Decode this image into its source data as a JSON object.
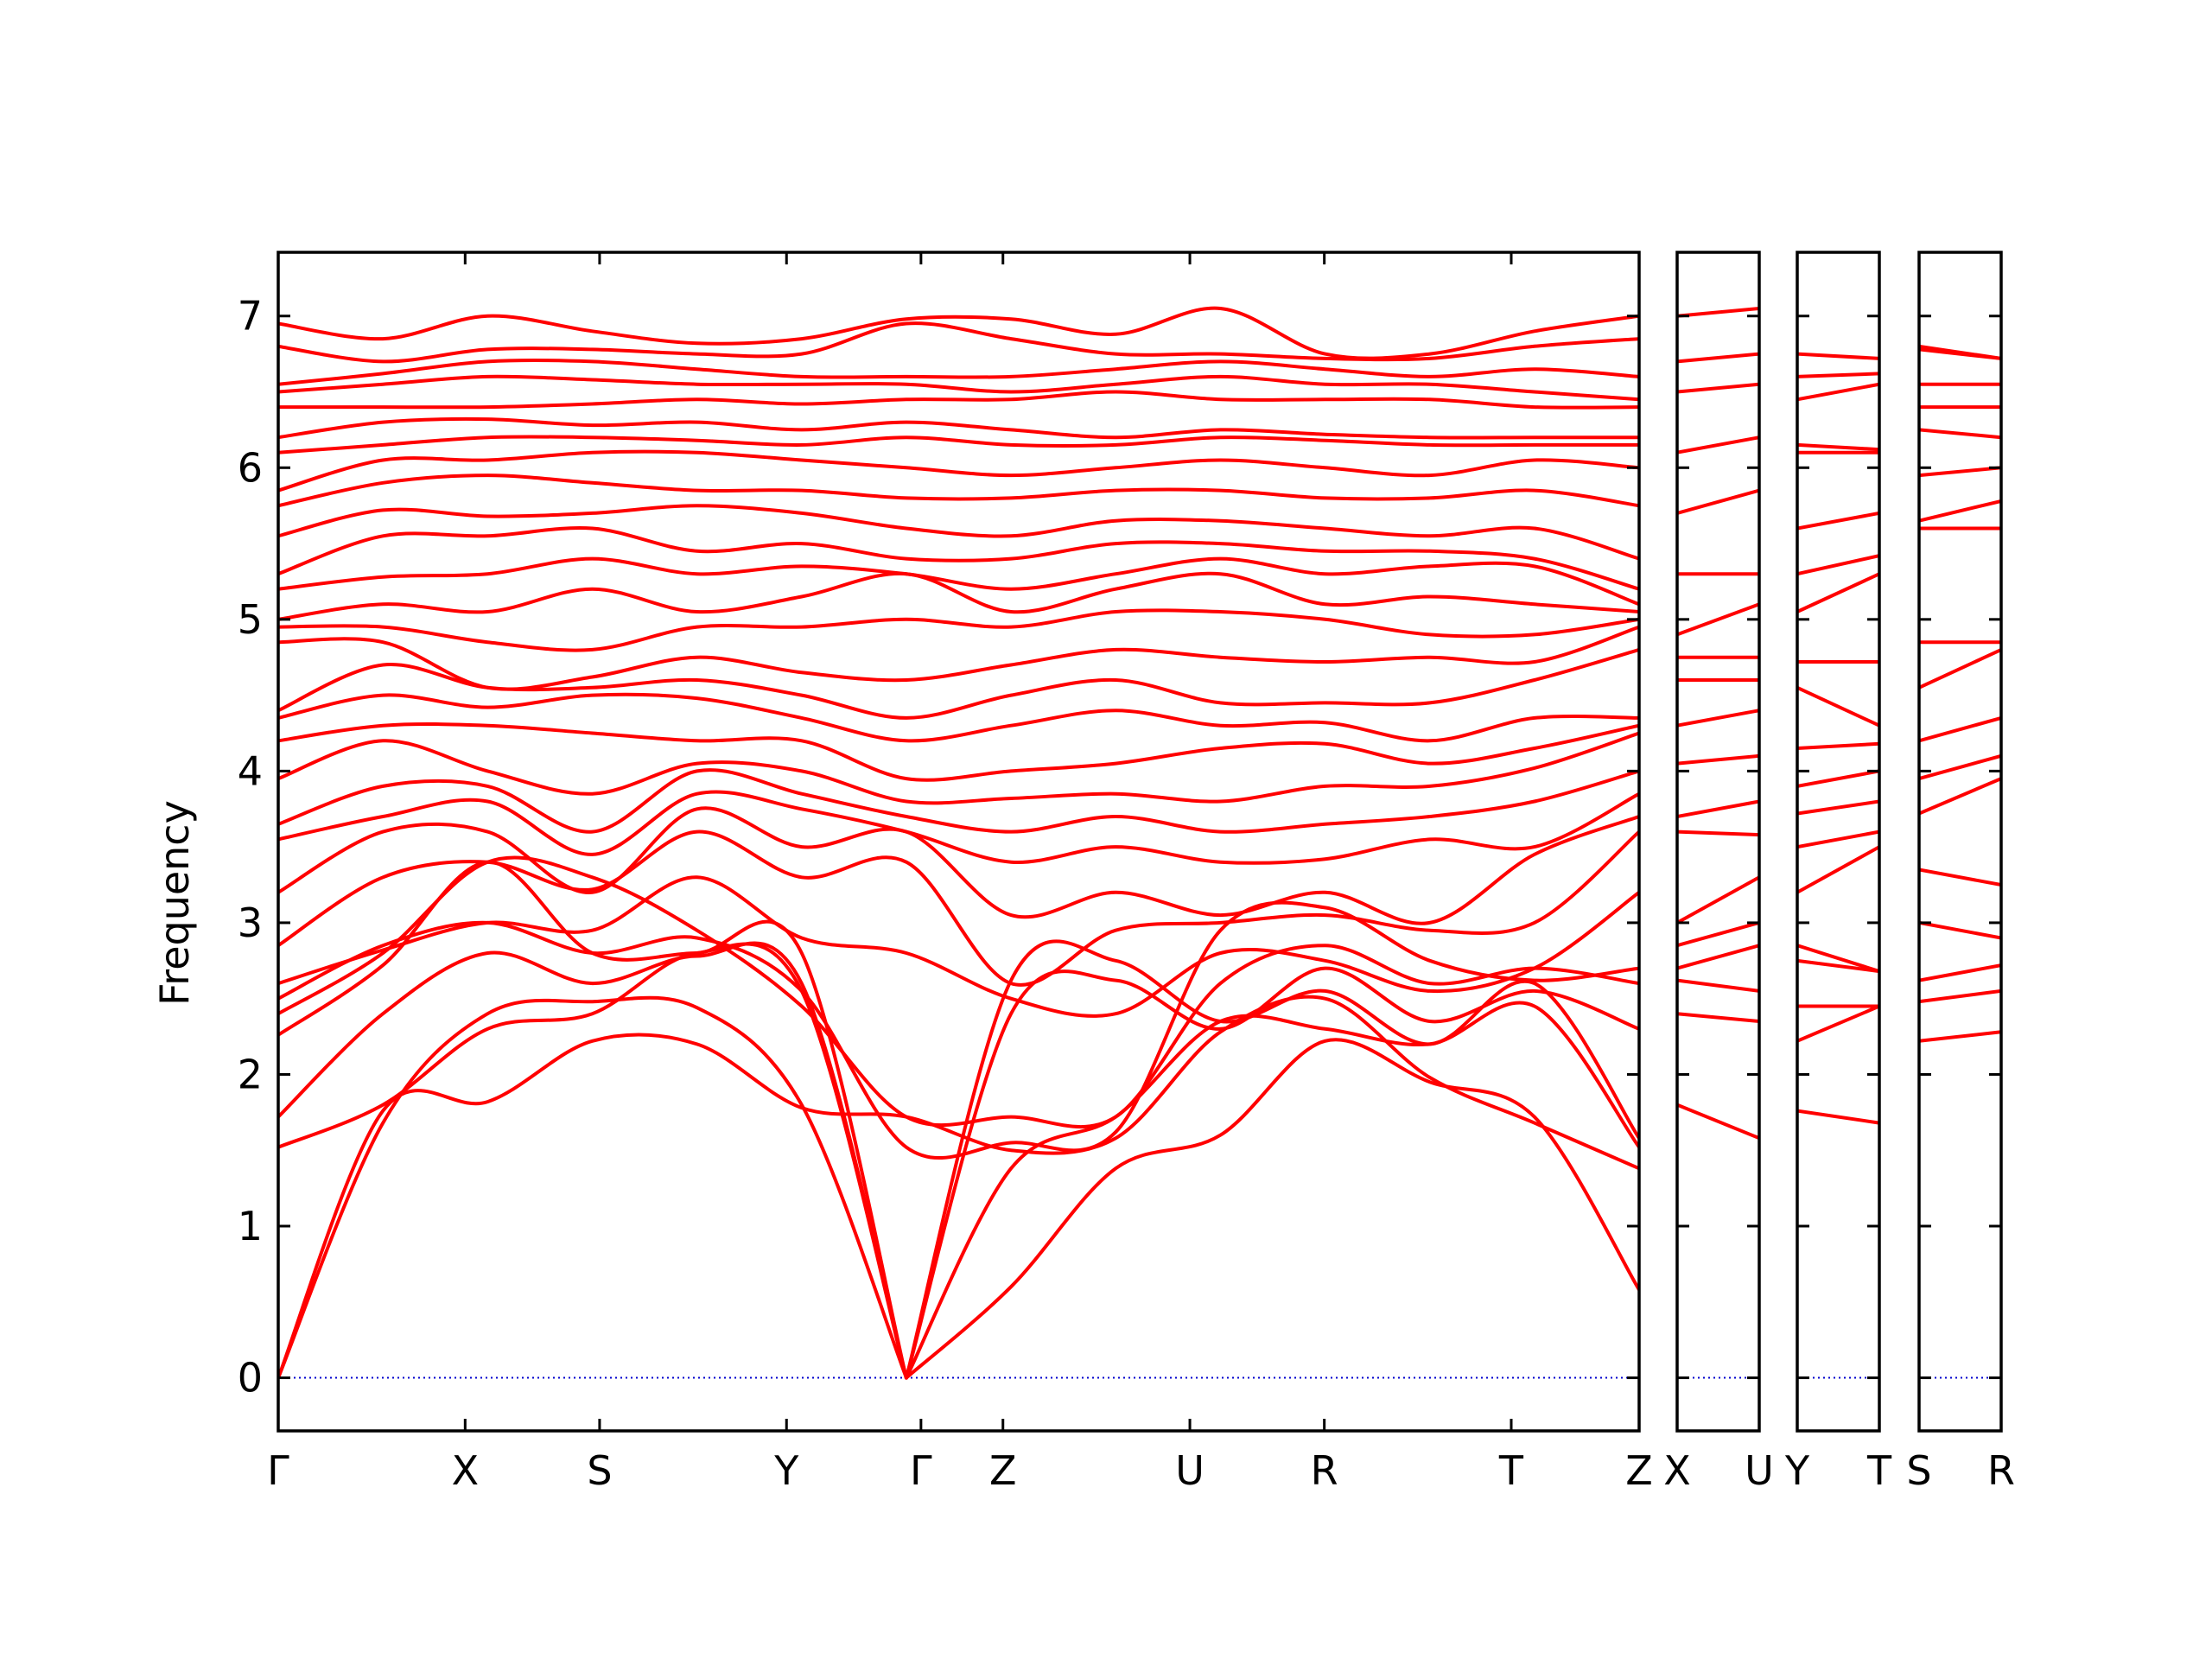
{
  "chart_data": {
    "type": "line",
    "ylabel": "Frequency",
    "ylim": [
      -0.35,
      7.42
    ],
    "yticks": [
      0,
      1,
      2,
      3,
      4,
      5,
      6,
      7
    ],
    "colors": {
      "bands": "#ff0000",
      "zero_line": "#0000cc",
      "axes": "#000000"
    },
    "panels": [
      {
        "xlim": [
          0,
          8.3
        ],
        "ticks": [
          {
            "x": 0,
            "label": "Γ"
          },
          {
            "x": 1.14,
            "label": "X"
          },
          {
            "x": 1.96,
            "label": "S"
          },
          {
            "x": 3.1,
            "label": "Y"
          },
          {
            "x": 3.92,
            "label": "Γ"
          },
          {
            "x": 4.42,
            "label": "Z"
          },
          {
            "x": 5.56,
            "label": "U"
          },
          {
            "x": 6.38,
            "label": "R"
          },
          {
            "x": 7.52,
            "label": "T"
          },
          {
            "x": 8.3,
            "label": "Z"
          }
        ],
        "bands": [
          [
            0,
            1.76,
            1.82,
            2.22,
            2.2,
            1.78,
            1.72,
            1.5,
            1.58,
            2.28,
            2.5,
            1.98,
            1.68,
            1.38
          ],
          [
            0,
            1.68,
            2.4,
            2.48,
            2.44,
            1.8,
            0,
            0.6,
            1.38,
            1.6,
            2.22,
            1.95,
            1.72,
            0.58
          ],
          [
            1.52,
            1.8,
            2.3,
            2.4,
            2.8,
            2.55,
            0,
            1.38,
            1.72,
            2.35,
            2.3,
            2.2,
            2.45,
            1.52
          ],
          [
            1.72,
            2.4,
            2.8,
            2.6,
            2.78,
            2.6,
            0,
            2.62,
            2.75,
            2.35,
            2.55,
            2.2,
            2.6,
            1.58
          ],
          [
            2.26,
            2.72,
            3.4,
            2.8,
            2.8,
            2.8,
            0,
            2.4,
            2.62,
            2.3,
            2.7,
            2.35,
            2.55,
            2.3
          ],
          [
            2.4,
            2.8,
            3.4,
            3.3,
            2.95,
            2.45,
            1.72,
            1.72,
            1.72,
            2.6,
            2.85,
            2.6,
            2.7,
            2.6
          ],
          [
            2.5,
            2.85,
            3.0,
            2.8,
            2.9,
            2.55,
            1.52,
            1.55,
            1.62,
            2.95,
            3.1,
            2.75,
            2.62,
            2.7
          ],
          [
            2.6,
            2.82,
            3.0,
            2.95,
            3.3,
            2.9,
            2.8,
            2.5,
            2.4,
            2.8,
            2.75,
            2.55,
            2.7,
            3.2
          ],
          [
            2.85,
            3.3,
            3.4,
            3.22,
            3.6,
            3.3,
            3.4,
            2.6,
            2.95,
            3.0,
            3.05,
            2.95,
            3.0,
            3.6
          ],
          [
            3.2,
            3.6,
            3.6,
            3.2,
            3.75,
            3.5,
            3.6,
            3.05,
            3.2,
            3.05,
            3.2,
            3.0,
            3.45,
            3.7
          ],
          [
            3.55,
            3.7,
            3.8,
            3.45,
            3.85,
            3.75,
            3.6,
            3.4,
            3.5,
            3.4,
            3.42,
            3.55,
            3.5,
            3.85
          ],
          [
            3.65,
            3.9,
            3.9,
            3.6,
            4.0,
            3.85,
            3.7,
            3.6,
            3.7,
            3.6,
            3.65,
            3.7,
            3.8,
            4.0
          ],
          [
            3.95,
            4.2,
            4.0,
            3.85,
            4.05,
            4.0,
            3.8,
            3.82,
            3.85,
            3.8,
            3.9,
            3.9,
            4.02,
            4.25
          ],
          [
            4.2,
            4.3,
            4.3,
            4.25,
            4.2,
            4.2,
            3.95,
            4.0,
            4.05,
            4.15,
            4.18,
            4.05,
            4.15,
            4.3
          ],
          [
            4.35,
            4.5,
            4.42,
            4.5,
            4.48,
            4.35,
            4.2,
            4.3,
            4.4,
            4.3,
            4.32,
            4.2,
            4.35,
            4.35
          ],
          [
            4.4,
            4.7,
            4.55,
            4.55,
            4.6,
            4.5,
            4.35,
            4.5,
            4.6,
            4.45,
            4.45,
            4.45,
            4.6,
            4.8
          ],
          [
            4.85,
            4.85,
            4.55,
            4.62,
            4.75,
            4.65,
            4.6,
            4.7,
            4.8,
            4.75,
            4.72,
            4.75,
            4.72,
            4.95
          ],
          [
            4.95,
            4.95,
            4.85,
            4.8,
            4.95,
            4.95,
            5.0,
            4.95,
            5.05,
            5.05,
            5.0,
            4.9,
            4.9,
            5.0
          ],
          [
            5.0,
            5.1,
            5.05,
            5.2,
            5.05,
            5.15,
            5.3,
            5.05,
            5.2,
            5.3,
            5.1,
            5.15,
            5.1,
            5.05
          ],
          [
            5.2,
            5.28,
            5.3,
            5.4,
            5.3,
            5.35,
            5.3,
            5.2,
            5.3,
            5.4,
            5.3,
            5.35,
            5.35,
            5.1
          ],
          [
            5.3,
            5.55,
            5.55,
            5.6,
            5.45,
            5.5,
            5.4,
            5.4,
            5.5,
            5.5,
            5.45,
            5.45,
            5.4,
            5.2
          ],
          [
            5.55,
            5.72,
            5.68,
            5.7,
            5.75,
            5.7,
            5.6,
            5.55,
            5.65,
            5.65,
            5.6,
            5.55,
            5.6,
            5.4
          ],
          [
            5.75,
            5.9,
            5.95,
            5.9,
            5.85,
            5.85,
            5.8,
            5.8,
            5.85,
            5.85,
            5.8,
            5.8,
            5.85,
            5.75
          ],
          [
            5.85,
            6.05,
            6.05,
            6.1,
            6.1,
            6.05,
            6.0,
            5.95,
            6.0,
            6.05,
            6.0,
            5.95,
            6.05,
            6.0
          ],
          [
            6.1,
            6.15,
            6.2,
            6.2,
            6.18,
            6.15,
            6.2,
            6.15,
            6.15,
            6.2,
            6.18,
            6.15,
            6.15,
            6.15
          ],
          [
            6.2,
            6.3,
            6.32,
            6.28,
            6.3,
            6.25,
            6.3,
            6.25,
            6.2,
            6.25,
            6.22,
            6.2,
            6.2,
            6.2
          ],
          [
            6.4,
            6.4,
            6.4,
            6.42,
            6.45,
            6.42,
            6.45,
            6.45,
            6.5,
            6.45,
            6.45,
            6.45,
            6.4,
            6.4
          ],
          [
            6.5,
            6.55,
            6.6,
            6.58,
            6.55,
            6.55,
            6.55,
            6.5,
            6.55,
            6.6,
            6.55,
            6.55,
            6.5,
            6.45
          ],
          [
            6.55,
            6.62,
            6.7,
            6.7,
            6.65,
            6.6,
            6.6,
            6.6,
            6.65,
            6.7,
            6.65,
            6.6,
            6.65,
            6.6
          ],
          [
            6.8,
            6.7,
            6.78,
            6.78,
            6.75,
            6.75,
            6.95,
            6.85,
            6.75,
            6.75,
            6.72,
            6.72,
            6.8,
            6.85
          ],
          [
            6.95,
            6.85,
            7.0,
            6.9,
            6.82,
            6.85,
            6.98,
            6.98,
            6.88,
            7.05,
            6.75,
            6.75,
            6.9,
            7.0
          ]
        ]
      },
      {
        "xlim": [
          0,
          1
        ],
        "ticks": [
          {
            "x": 0,
            "label": "X"
          },
          {
            "x": 1,
            "label": "U"
          }
        ],
        "bands": [
          [
            1.8,
            1.58
          ],
          [
            2.4,
            2.35
          ],
          [
            2.62,
            2.55
          ],
          [
            2.7,
            2.85
          ],
          [
            2.85,
            3.0
          ],
          [
            3.0,
            3.3
          ],
          [
            3.6,
            3.58
          ],
          [
            3.7,
            3.8
          ],
          [
            4.05,
            4.1
          ],
          [
            4.3,
            4.4
          ],
          [
            4.6,
            4.6
          ],
          [
            4.75,
            4.75
          ],
          [
            4.9,
            5.1
          ],
          [
            5.3,
            5.3
          ],
          [
            5.7,
            5.85
          ],
          [
            6.1,
            6.2
          ],
          [
            6.5,
            6.55
          ],
          [
            6.7,
            6.75
          ],
          [
            7.0,
            7.05
          ]
        ]
      },
      {
        "xlim": [
          0,
          1
        ],
        "ticks": [
          {
            "x": 0,
            "label": "Y"
          },
          {
            "x": 1,
            "label": "T"
          }
        ],
        "bands": [
          [
            1.76,
            1.68
          ],
          [
            2.22,
            2.45
          ],
          [
            2.45,
            2.45
          ],
          [
            2.75,
            2.68
          ],
          [
            2.85,
            2.68
          ],
          [
            3.2,
            3.5
          ],
          [
            3.5,
            3.6
          ],
          [
            3.72,
            3.8
          ],
          [
            3.9,
            4.0
          ],
          [
            4.15,
            4.18
          ],
          [
            4.55,
            4.3
          ],
          [
            4.72,
            4.72
          ],
          [
            5.05,
            5.3
          ],
          [
            5.3,
            5.42
          ],
          [
            5.6,
            5.7
          ],
          [
            6.1,
            6.1
          ],
          [
            6.15,
            6.12
          ],
          [
            6.45,
            6.55
          ],
          [
            6.6,
            6.62
          ],
          [
            6.75,
            6.72
          ]
        ]
      },
      {
        "xlim": [
          0,
          1
        ],
        "ticks": [
          {
            "x": 0,
            "label": "S"
          },
          {
            "x": 1,
            "label": "R"
          }
        ],
        "bands": [
          [
            2.22,
            2.28
          ],
          [
            2.48,
            2.55
          ],
          [
            2.62,
            2.72
          ],
          [
            3.0,
            2.9
          ],
          [
            3.35,
            3.25
          ],
          [
            3.72,
            3.95
          ],
          [
            3.95,
            4.1
          ],
          [
            4.2,
            4.35
          ],
          [
            4.55,
            4.8
          ],
          [
            4.85,
            4.85
          ],
          [
            5.6,
            5.6
          ],
          [
            5.65,
            5.78
          ],
          [
            5.95,
            6.0
          ],
          [
            6.25,
            6.2
          ],
          [
            6.4,
            6.4
          ],
          [
            6.55,
            6.55
          ],
          [
            6.78,
            6.72
          ],
          [
            6.8,
            6.72
          ]
        ]
      }
    ]
  }
}
